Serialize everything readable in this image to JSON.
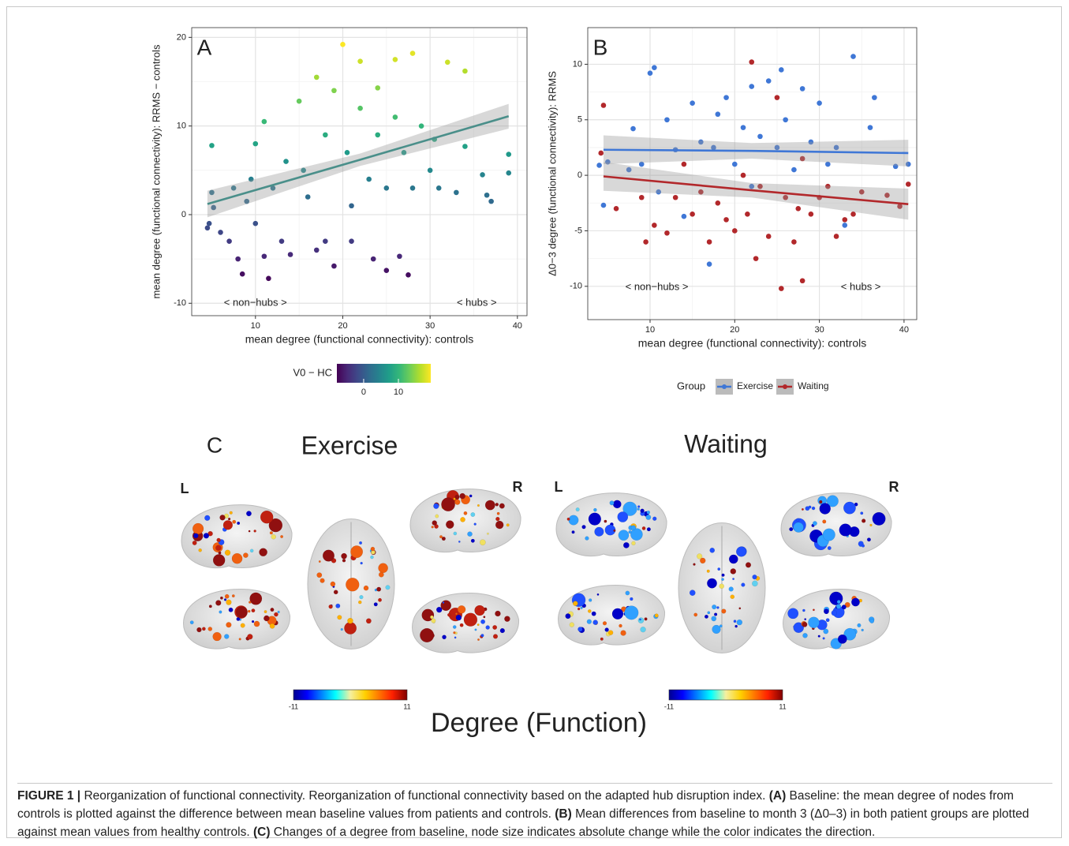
{
  "chart_data": [
    {
      "type": "scatter",
      "panel": "A",
      "xlabel": "mean degree (functional connectivity): controls",
      "ylabel": "mean degree (functional connectivity): RRMS − controls",
      "xlim": [
        2.7,
        41.1
      ],
      "ylim": [
        -11.4,
        21.1
      ],
      "xticks": [
        10,
        20,
        30,
        40
      ],
      "yticks": [
        -10,
        0,
        10,
        20
      ],
      "grid": true,
      "annotations": [
        "< non−hubs >",
        "< hubs >"
      ],
      "color_scale": {
        "title": "V0 − HC",
        "palette": "viridis",
        "lim": [
          -7.7,
          19.3
        ],
        "ticks": [
          0,
          10
        ]
      },
      "series": [
        {
          "x": [
            4.5,
            4.7,
            5,
            5,
            5.2,
            6,
            7,
            7.5,
            8,
            8.5,
            9,
            9.5,
            10,
            10,
            11,
            11.5,
            11,
            12,
            13,
            13.5,
            14,
            15,
            15.5,
            16,
            17,
            17,
            18,
            18,
            19,
            19,
            20,
            20.5,
            21,
            21,
            22,
            22,
            23,
            23.5,
            24,
            24,
            25,
            25,
            26,
            26,
            26.5,
            27,
            27.5,
            28,
            28,
            29,
            30,
            30.5,
            31,
            32,
            33,
            34,
            34,
            36,
            36.5,
            37,
            39,
            39
          ],
          "values": [
            -1.5,
            -1,
            2.5,
            7.8,
            0.8,
            -2,
            -3,
            3,
            -5,
            -6.7,
            1.5,
            4,
            8,
            -1,
            10.5,
            -7.2,
            -4.7,
            3,
            -3,
            6,
            -4.5,
            12.8,
            5,
            2,
            -4,
            15.5,
            9,
            -3,
            14,
            -5.8,
            19.2,
            7,
            1,
            -3,
            12,
            17.3,
            4,
            -5,
            14.3,
            9,
            -6.3,
            3,
            17.5,
            11,
            -4.7,
            7,
            -6.8,
            18.2,
            3,
            10,
            5,
            8.5,
            3,
            17.2,
            2.5,
            16.2,
            7.7,
            4.5,
            2.2,
            1.5,
            6.8,
            4.7
          ],
          "fit": {
            "color": "#4a8f8a",
            "x": [
              4.5,
              22,
              39
            ],
            "values": [
              1.2,
              6.2,
              11.1
            ],
            "lower": [
              -0.3,
              5.5,
              9.7
            ],
            "upper": [
              2.7,
              6.9,
              12.5
            ]
          }
        }
      ]
    },
    {
      "type": "scatter",
      "panel": "B",
      "xlabel": "mean degree (functional connectivity): controls",
      "ylabel": "Δ0−3 degree (functional connectivity): RRMS",
      "xlim": [
        2.64,
        41.5
      ],
      "ylim": [
        -13,
        13.3
      ],
      "xticks": [
        10,
        20,
        30,
        40
      ],
      "yticks": [
        -10,
        -5,
        0,
        5,
        10
      ],
      "grid": true,
      "annotations": [
        "< non−hubs >",
        "< hubs >"
      ],
      "legend_title": "Group",
      "series": [
        {
          "name": "Exercise",
          "color": "#3f77d6",
          "x": [
            4,
            4.5,
            5,
            7.5,
            8,
            9,
            10,
            10.5,
            11,
            12,
            13,
            14,
            15,
            16,
            17,
            17.5,
            18,
            19,
            20,
            21,
            22,
            22,
            23,
            24,
            25,
            25.5,
            26,
            27,
            28,
            29,
            30,
            31,
            32,
            33,
            34,
            36,
            36.5,
            39,
            40.5
          ],
          "values": [
            0.9,
            -2.7,
            1.2,
            0.5,
            4.2,
            1,
            9.2,
            9.7,
            -1.5,
            5,
            2.3,
            -3.7,
            6.5,
            3,
            -8,
            2.5,
            5.5,
            7,
            1,
            4.3,
            -1,
            8,
            3.5,
            8.5,
            2.5,
            9.5,
            5,
            0.5,
            7.8,
            3,
            6.5,
            1,
            2.5,
            -4.5,
            10.7,
            4.3,
            7,
            0.8,
            1
          ],
          "fit": {
            "x": [
              4.5,
              22,
              40.5
            ],
            "values": [
              2.3,
              2.2,
              2.0
            ],
            "lower": [
              1.0,
              1.5,
              0.8
            ],
            "upper": [
              3.6,
              2.9,
              3.2
            ]
          }
        },
        {
          "name": "Waiting",
          "color": "#b2282b",
          "x": [
            4.2,
            4.5,
            6,
            9,
            9.5,
            10.5,
            12,
            13,
            14,
            15,
            16,
            17,
            18,
            19,
            20,
            21,
            21.5,
            22,
            22.5,
            23,
            24,
            25,
            25.5,
            26,
            27,
            27.5,
            28,
            28,
            29,
            30,
            31,
            32,
            33,
            34,
            35,
            38,
            39.5,
            40.5
          ],
          "values": [
            2,
            6.3,
            -3,
            -2,
            -6,
            -4.5,
            -5.2,
            -2,
            1,
            -3.5,
            -1.5,
            -6,
            -2.5,
            -4,
            -5,
            0,
            -3.5,
            10.2,
            -7.5,
            -1,
            -5.5,
            7,
            -10.2,
            -2,
            -6,
            -3,
            -9.5,
            1.5,
            -3.5,
            -2,
            -1,
            -5.5,
            -4,
            -3.5,
            -1.5,
            -1.8,
            -2.8,
            -0.8
          ],
          "fit": {
            "x": [
              4.5,
              22,
              40.5
            ],
            "values": [
              -0.1,
              -1.35,
              -2.6
            ],
            "lower": [
              -1.4,
              -2.0,
              -4.0
            ],
            "upper": [
              1.2,
              -0.7,
              -1.2
            ]
          }
        }
      ]
    }
  ],
  "panel_c": {
    "label": "C",
    "title": "Degree (Function)",
    "groups": [
      {
        "title": "Exercise",
        "left": "L",
        "right": "R"
      },
      {
        "title": "Waiting",
        "left": "L",
        "right": "R"
      }
    ],
    "colorbar": {
      "palette": "jet",
      "lim": [
        -11,
        11
      ],
      "ticks": [
        -11,
        11
      ]
    }
  },
  "caption": {
    "runs": [
      {
        "text": "FIGURE 1 | ",
        "bold": true
      },
      {
        "text": "Reorganization of functional connectivity. Reorganization of functional connectivity based on the adapted hub disruption index. ",
        "bold": false
      },
      {
        "text": "(A)",
        "bold": true
      },
      {
        "text": " Baseline: the mean degree of nodes from controls is plotted against the difference between mean baseline values from patients and controls. ",
        "bold": false
      },
      {
        "text": "(B)",
        "bold": true
      },
      {
        "text": " Mean differences from baseline to month 3 (Δ0–3) in both patient groups are plotted against mean values from healthy controls. ",
        "bold": false
      },
      {
        "text": "(C)",
        "bold": true
      },
      {
        "text": " Changes of a degree from baseline, node size indicates absolute change while the color indicates the direction.",
        "bold": false
      }
    ]
  }
}
